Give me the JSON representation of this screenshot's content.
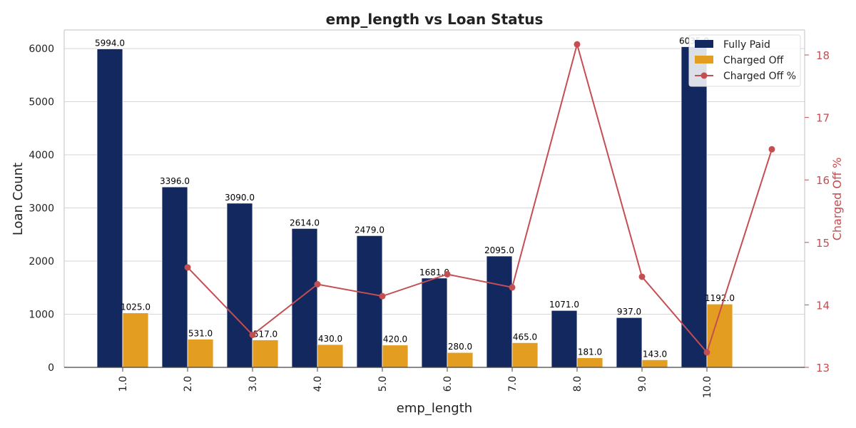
{
  "chart_data": {
    "type": "bar",
    "title": "emp_length vs Loan Status",
    "xlabel": "emp_length",
    "ylabel": "Loan Count",
    "y2label": "Charged Off %",
    "categories": [
      "1.0",
      "2.0",
      "3.0",
      "4.0",
      "5.0",
      "6.0",
      "7.0",
      "8.0",
      "9.0",
      "10.0"
    ],
    "series": [
      {
        "name": "Fully Paid",
        "kind": "bar",
        "axis": "left",
        "color": "#12285f",
        "values": [
          5994.0,
          3396.0,
          3090.0,
          2614.0,
          2479.0,
          1681.0,
          2095.0,
          1071.0,
          937.0,
          6035.0
        ]
      },
      {
        "name": "Charged Off",
        "kind": "bar",
        "axis": "left",
        "color": "#e39d21",
        "values": [
          1025.0,
          531.0,
          517.0,
          430.0,
          420.0,
          280.0,
          465.0,
          181.0,
          143.0,
          1192.0
        ]
      },
      {
        "name": "Charged Off %",
        "kind": "line",
        "axis": "right",
        "color": "#c44e52",
        "x_positions": [
          1,
          2,
          3,
          4,
          5,
          6,
          7,
          8,
          9,
          10
        ],
        "values": [
          14.6,
          13.52,
          14.33,
          14.14,
          14.49,
          14.28,
          18.17,
          14.45,
          13.24,
          16.49
        ]
      }
    ],
    "ylim": [
      0,
      6350
    ],
    "y2lim": [
      13,
      18.4
    ],
    "yticks": [
      0,
      1000,
      2000,
      3000,
      4000,
      5000,
      6000
    ],
    "y2ticks": [
      13,
      14,
      15,
      16,
      17,
      18
    ],
    "bar_labels": [
      "5994.0",
      "1025.0",
      "3396.0",
      "531.0",
      "3090.0",
      "517.0",
      "2614.0",
      "430.0",
      "2479.0",
      "420.0",
      "1681.0",
      "280.0",
      "2095.0",
      "465.0",
      "1071.0",
      "181.0",
      "937.0",
      "143.0",
      "6035.0",
      "1192.0"
    ],
    "grid": true,
    "legend_position": "top-right",
    "colors": {
      "fully_paid": "#12285f",
      "charged_off": "#e39d21",
      "charged_off_pct": "#c44e52"
    }
  }
}
